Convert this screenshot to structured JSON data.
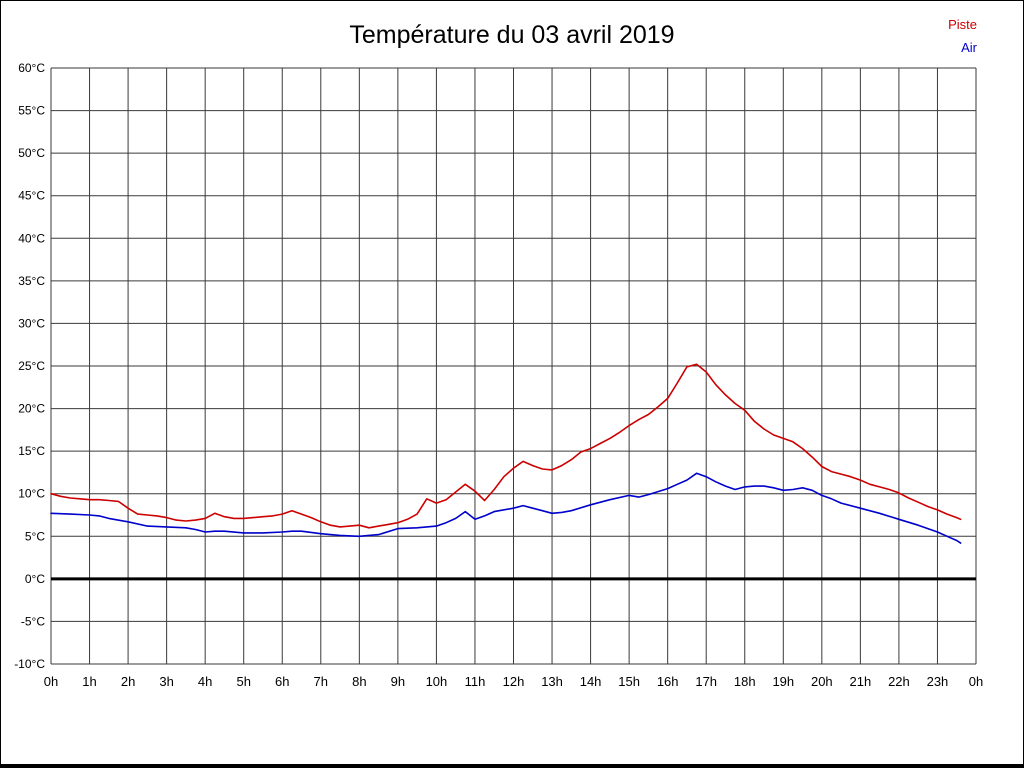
{
  "chart_data": {
    "type": "line",
    "title": "Température du 03 avril 2019",
    "xlim": [
      0,
      24
    ],
    "ylim": [
      -10,
      60
    ],
    "grid": true,
    "zero_line": true,
    "legend_position": "top-right",
    "legend": [
      {
        "name": "Piste",
        "color": "#cc0000"
      },
      {
        "name": "Air",
        "color": "#0000cc"
      }
    ],
    "x_ticks": [
      {
        "v": 0,
        "label": "0h"
      },
      {
        "v": 1,
        "label": "1h"
      },
      {
        "v": 2,
        "label": "2h"
      },
      {
        "v": 3,
        "label": "3h"
      },
      {
        "v": 4,
        "label": "4h"
      },
      {
        "v": 5,
        "label": "5h"
      },
      {
        "v": 6,
        "label": "6h"
      },
      {
        "v": 7,
        "label": "7h"
      },
      {
        "v": 8,
        "label": "8h"
      },
      {
        "v": 9,
        "label": "9h"
      },
      {
        "v": 10,
        "label": "10h"
      },
      {
        "v": 11,
        "label": "11h"
      },
      {
        "v": 12,
        "label": "12h"
      },
      {
        "v": 13,
        "label": "13h"
      },
      {
        "v": 14,
        "label": "14h"
      },
      {
        "v": 15,
        "label": "15h"
      },
      {
        "v": 16,
        "label": "16h"
      },
      {
        "v": 17,
        "label": "17h"
      },
      {
        "v": 18,
        "label": "18h"
      },
      {
        "v": 19,
        "label": "19h"
      },
      {
        "v": 20,
        "label": "20h"
      },
      {
        "v": 21,
        "label": "21h"
      },
      {
        "v": 22,
        "label": "22h"
      },
      {
        "v": 23,
        "label": "23h"
      },
      {
        "v": 24,
        "label": "0h"
      }
    ],
    "y_ticks": [
      {
        "v": 60,
        "label": "60°C"
      },
      {
        "v": 55,
        "label": "55°C"
      },
      {
        "v": 50,
        "label": "50°C"
      },
      {
        "v": 45,
        "label": "45°C"
      },
      {
        "v": 40,
        "label": "40°C"
      },
      {
        "v": 35,
        "label": "35°C"
      },
      {
        "v": 30,
        "label": "30°C"
      },
      {
        "v": 25,
        "label": "25°C"
      },
      {
        "v": 20,
        "label": "20°C"
      },
      {
        "v": 15,
        "label": "15°C"
      },
      {
        "v": 10,
        "label": "10°C"
      },
      {
        "v": 5,
        "label": "5°C"
      },
      {
        "v": 0,
        "label": "0°C"
      },
      {
        "v": -5,
        "label": "-5°C"
      },
      {
        "v": -10,
        "label": "-10°C"
      }
    ],
    "series": [
      {
        "name": "Piste",
        "color": "#cc0000",
        "points": [
          [
            0,
            10.0
          ],
          [
            0.25,
            9.7
          ],
          [
            0.5,
            9.5
          ],
          [
            0.75,
            9.4
          ],
          [
            1,
            9.3
          ],
          [
            1.25,
            9.3
          ],
          [
            1.5,
            9.2
          ],
          [
            1.75,
            9.1
          ],
          [
            2,
            8.3
          ],
          [
            2.25,
            7.6
          ],
          [
            2.5,
            7.5
          ],
          [
            2.75,
            7.4
          ],
          [
            3,
            7.2
          ],
          [
            3.25,
            6.9
          ],
          [
            3.5,
            6.8
          ],
          [
            3.75,
            6.9
          ],
          [
            4,
            7.1
          ],
          [
            4.25,
            7.7
          ],
          [
            4.5,
            7.3
          ],
          [
            4.75,
            7.1
          ],
          [
            5,
            7.1
          ],
          [
            5.25,
            7.2
          ],
          [
            5.5,
            7.3
          ],
          [
            5.75,
            7.4
          ],
          [
            6,
            7.6
          ],
          [
            6.25,
            8.0
          ],
          [
            6.5,
            7.6
          ],
          [
            6.75,
            7.2
          ],
          [
            7,
            6.7
          ],
          [
            7.25,
            6.3
          ],
          [
            7.5,
            6.1
          ],
          [
            7.75,
            6.2
          ],
          [
            8,
            6.3
          ],
          [
            8.25,
            6.0
          ],
          [
            8.5,
            6.2
          ],
          [
            8.75,
            6.4
          ],
          [
            9,
            6.6
          ],
          [
            9.25,
            7.0
          ],
          [
            9.5,
            7.6
          ],
          [
            9.75,
            9.4
          ],
          [
            10,
            8.9
          ],
          [
            10.25,
            9.3
          ],
          [
            10.5,
            10.2
          ],
          [
            10.75,
            11.1
          ],
          [
            11,
            10.3
          ],
          [
            11.25,
            9.2
          ],
          [
            11.5,
            10.5
          ],
          [
            11.75,
            12.0
          ],
          [
            12,
            13.0
          ],
          [
            12.25,
            13.8
          ],
          [
            12.5,
            13.3
          ],
          [
            12.75,
            12.9
          ],
          [
            13,
            12.8
          ],
          [
            13.25,
            13.3
          ],
          [
            13.5,
            14.0
          ],
          [
            13.75,
            14.9
          ],
          [
            14,
            15.3
          ],
          [
            14.25,
            15.9
          ],
          [
            14.5,
            16.5
          ],
          [
            14.75,
            17.2
          ],
          [
            15,
            18.0
          ],
          [
            15.25,
            18.7
          ],
          [
            15.5,
            19.3
          ],
          [
            15.75,
            20.2
          ],
          [
            16,
            21.2
          ],
          [
            16.25,
            23.0
          ],
          [
            16.5,
            24.9
          ],
          [
            16.75,
            25.2
          ],
          [
            17,
            24.3
          ],
          [
            17.25,
            22.8
          ],
          [
            17.5,
            21.6
          ],
          [
            17.75,
            20.6
          ],
          [
            18,
            19.8
          ],
          [
            18.25,
            18.5
          ],
          [
            18.5,
            17.6
          ],
          [
            18.75,
            16.9
          ],
          [
            19,
            16.5
          ],
          [
            19.25,
            16.1
          ],
          [
            19.5,
            15.3
          ],
          [
            19.75,
            14.3
          ],
          [
            20,
            13.2
          ],
          [
            20.25,
            12.6
          ],
          [
            20.5,
            12.3
          ],
          [
            20.75,
            12.0
          ],
          [
            21,
            11.6
          ],
          [
            21.25,
            11.1
          ],
          [
            21.5,
            10.8
          ],
          [
            21.75,
            10.5
          ],
          [
            22,
            10.1
          ],
          [
            22.25,
            9.5
          ],
          [
            22.5,
            9.0
          ],
          [
            22.75,
            8.5
          ],
          [
            23,
            8.1
          ],
          [
            23.25,
            7.6
          ],
          [
            23.5,
            7.2
          ],
          [
            23.6,
            7.0
          ]
        ]
      },
      {
        "name": "Air",
        "color": "#0000cc",
        "points": [
          [
            0,
            7.7
          ],
          [
            0.5,
            7.6
          ],
          [
            1,
            7.5
          ],
          [
            1.25,
            7.4
          ],
          [
            1.5,
            7.1
          ],
          [
            2,
            6.7
          ],
          [
            2.5,
            6.2
          ],
          [
            3,
            6.1
          ],
          [
            3.5,
            6.0
          ],
          [
            3.75,
            5.8
          ],
          [
            4,
            5.5
          ],
          [
            4.25,
            5.6
          ],
          [
            4.5,
            5.6
          ],
          [
            5,
            5.4
          ],
          [
            5.5,
            5.4
          ],
          [
            6,
            5.5
          ],
          [
            6.25,
            5.6
          ],
          [
            6.5,
            5.6
          ],
          [
            7,
            5.3
          ],
          [
            7.5,
            5.1
          ],
          [
            8,
            5.0
          ],
          [
            8.5,
            5.2
          ],
          [
            9,
            5.9
          ],
          [
            9.5,
            6.0
          ],
          [
            10,
            6.2
          ],
          [
            10.25,
            6.6
          ],
          [
            10.5,
            7.1
          ],
          [
            10.75,
            7.9
          ],
          [
            11,
            7.0
          ],
          [
            11.25,
            7.4
          ],
          [
            11.5,
            7.9
          ],
          [
            12,
            8.3
          ],
          [
            12.25,
            8.6
          ],
          [
            12.5,
            8.3
          ],
          [
            12.75,
            8.0
          ],
          [
            13,
            7.7
          ],
          [
            13.25,
            7.8
          ],
          [
            13.5,
            8.0
          ],
          [
            14,
            8.7
          ],
          [
            14.5,
            9.3
          ],
          [
            15,
            9.8
          ],
          [
            15.25,
            9.6
          ],
          [
            15.5,
            9.9
          ],
          [
            16,
            10.6
          ],
          [
            16.25,
            11.1
          ],
          [
            16.5,
            11.6
          ],
          [
            16.75,
            12.4
          ],
          [
            17,
            12.0
          ],
          [
            17.25,
            11.4
          ],
          [
            17.5,
            10.9
          ],
          [
            17.75,
            10.5
          ],
          [
            18,
            10.8
          ],
          [
            18.25,
            10.9
          ],
          [
            18.5,
            10.9
          ],
          [
            18.75,
            10.7
          ],
          [
            19,
            10.4
          ],
          [
            19.25,
            10.5
          ],
          [
            19.5,
            10.7
          ],
          [
            19.75,
            10.4
          ],
          [
            20,
            9.8
          ],
          [
            20.25,
            9.4
          ],
          [
            20.5,
            8.9
          ],
          [
            21,
            8.3
          ],
          [
            21.5,
            7.7
          ],
          [
            22,
            7.0
          ],
          [
            22.5,
            6.3
          ],
          [
            23,
            5.5
          ],
          [
            23.25,
            5.0
          ],
          [
            23.5,
            4.5
          ],
          [
            23.6,
            4.2
          ]
        ]
      }
    ]
  }
}
